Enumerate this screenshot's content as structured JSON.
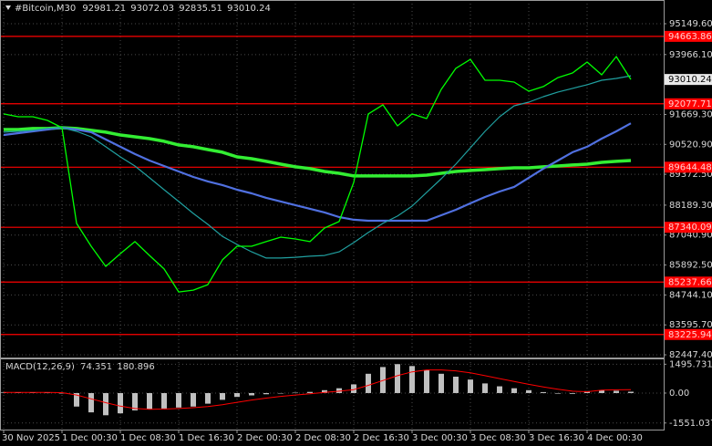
{
  "chart_data": [
    {
      "type": "line",
      "title": "#Bitcoin,M30",
      "ohlc": [
        92981.21,
        93072.03,
        92835.51,
        93010.24
      ],
      "categories": [
        "30 Nov 2025",
        null,
        null,
        null,
        "1 Dec 00:30",
        null,
        null,
        null,
        "1 Dec 08:30",
        null,
        null,
        null,
        "1 Dec 16:30",
        null,
        null,
        null,
        "2 Dec 00:30",
        null,
        null,
        null,
        "2 Dec 08:30",
        null,
        null,
        null,
        "2 Dec 16:30",
        null,
        null,
        null,
        "3 Dec 00:30",
        null,
        null,
        null,
        "3 Dec 08:30",
        null,
        null,
        null,
        "3 Dec 16:30",
        null,
        null,
        null,
        "4 Dec 00:30",
        null,
        null,
        null
      ],
      "series": [
        {
          "color": "#00ff00",
          "values": [
            91690,
            91580,
            91580,
            91440,
            91160,
            87490,
            86610,
            85840,
            86330,
            86790,
            86260,
            85740,
            84860,
            84930,
            85140,
            86090,
            86610,
            86610,
            86790,
            86960,
            86890,
            86790,
            87310,
            87560,
            89060,
            91690,
            92040,
            91230,
            91690,
            91510,
            92630,
            93440,
            93780,
            92980,
            92980,
            92910,
            92560,
            92740,
            93080,
            93260,
            93680,
            93190,
            93890,
            93010
          ]
        },
        {
          "color": "#20a0a0",
          "values": [
            90990,
            91020,
            91060,
            91130,
            91160,
            91020,
            90810,
            90430,
            90040,
            89690,
            89240,
            88780,
            88330,
            87870,
            87450,
            86990,
            86680,
            86400,
            86160,
            86160,
            86190,
            86230,
            86260,
            86400,
            86750,
            87140,
            87490,
            87770,
            88150,
            88680,
            89200,
            89760,
            90390,
            91020,
            91580,
            92000,
            92140,
            92350,
            92530,
            92670,
            92810,
            92980,
            93050,
            93150
          ]
        },
        {
          "color": "#5070e0",
          "values": [
            90880,
            90950,
            91020,
            91090,
            91160,
            91090,
            90990,
            90710,
            90430,
            90150,
            89900,
            89690,
            89480,
            89270,
            89100,
            88960,
            88780,
            88640,
            88470,
            88330,
            88190,
            88050,
            87910,
            87730,
            87630,
            87590,
            87590,
            87590,
            87590,
            87590,
            87800,
            88010,
            88260,
            88500,
            88710,
            88890,
            89240,
            89590,
            89900,
            90220,
            90430,
            90740,
            91020,
            91330
          ]
        },
        {
          "color": "#33ee33",
          "values": [
            91090,
            91090,
            91130,
            91130,
            91160,
            91130,
            91060,
            90990,
            90880,
            90810,
            90740,
            90640,
            90500,
            90430,
            90320,
            90220,
            90040,
            89970,
            89870,
            89760,
            89660,
            89590,
            89480,
            89410,
            89310,
            89310,
            89310,
            89310,
            89310,
            89340,
            89410,
            89480,
            89520,
            89550,
            89590,
            89620,
            89620,
            89660,
            89690,
            89730,
            89760,
            89830,
            89870,
            89900
          ]
        }
      ],
      "levels": {
        "color": "#ff0000",
        "values": [
          94663.86,
          92077.71,
          89644.48,
          87340.09,
          85237.66,
          83225.94
        ]
      },
      "ylim": [
        82308,
        96059
      ],
      "yticks": [
        {
          "value": 95149.6,
          "label": "95149.60"
        },
        {
          "value": 93966.1,
          "label": "93966.10"
        },
        {
          "value": 91669.3,
          "label": "91669.30"
        },
        {
          "value": 90520.9,
          "label": "90520.90"
        },
        {
          "value": 89372.5,
          "label": "89372.50"
        },
        {
          "value": 88189.3,
          "label": "88189.30"
        },
        {
          "value": 87040.9,
          "label": "87040.90"
        },
        {
          "value": 85892.5,
          "label": "85892.50"
        },
        {
          "value": 84744.1,
          "label": "84744.10"
        },
        {
          "value": 83595.7,
          "label": "83595.70"
        },
        {
          "value": 82447.4,
          "label": "82447.40"
        }
      ],
      "grid": true
    },
    {
      "type": "bar",
      "title": "MACD(12,26,9)",
      "indicator_values": [
        74.351,
        180.896
      ],
      "series": [
        {
          "type": "bar",
          "color": "#c0c0c0",
          "values": [
            30,
            40,
            30,
            20,
            -20,
            -700,
            -1000,
            -1150,
            -1050,
            -900,
            -850,
            -800,
            -750,
            -700,
            -550,
            -350,
            -200,
            -120,
            -60,
            -20,
            20,
            60,
            150,
            250,
            450,
            1000,
            1350,
            1500,
            1400,
            1200,
            1000,
            850,
            700,
            500,
            350,
            250,
            150,
            50,
            -30,
            -40,
            100,
            150,
            120,
            70
          ]
        },
        {
          "type": "line",
          "color": "#ff0000",
          "values": [
            30,
            35,
            35,
            30,
            20,
            -100,
            -300,
            -500,
            -680,
            -800,
            -840,
            -830,
            -800,
            -760,
            -700,
            -600,
            -480,
            -360,
            -260,
            -170,
            -100,
            -40,
            30,
            100,
            180,
            400,
            650,
            900,
            1100,
            1200,
            1200,
            1150,
            1050,
            900,
            750,
            600,
            450,
            320,
            200,
            100,
            70,
            150,
            170,
            180
          ]
        }
      ],
      "ylim": [
        -1940,
        1795
      ],
      "yticks": [
        1495.731,
        {
          "value": 0,
          "label": "0.00"
        },
        -1551.037
      ],
      "grid": true
    }
  ]
}
